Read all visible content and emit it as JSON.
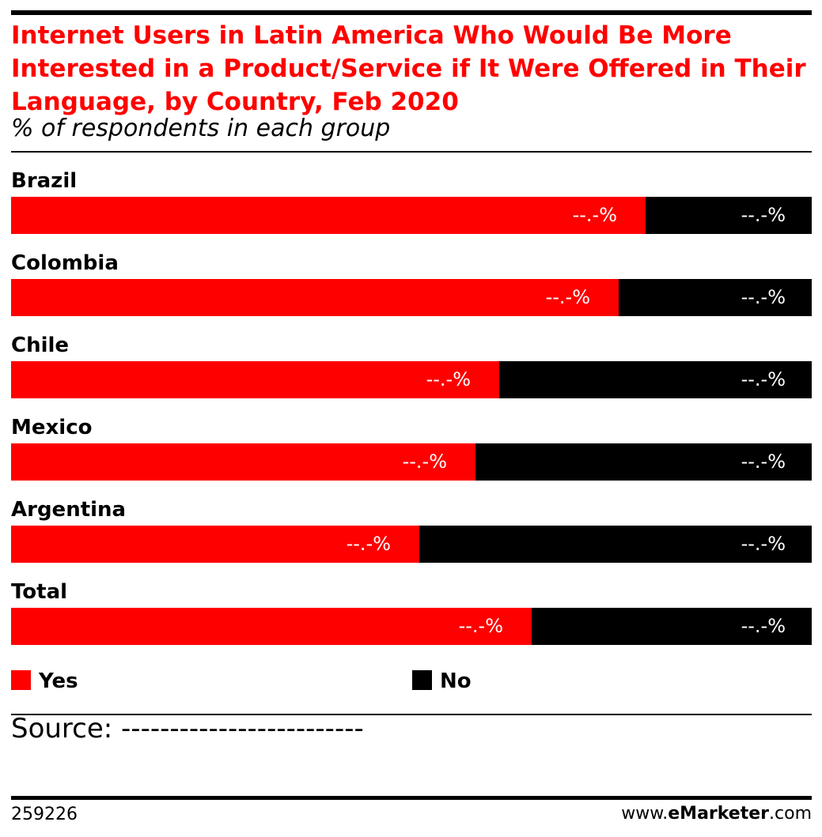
{
  "title": "Internet Users in Latin America Who Would Be More Interested in a Product/Service if It Were Offered in Their Language, by Country, Feb 2020",
  "subtitle": "% of respondents in each group",
  "colors": {
    "yes": "#ff0000",
    "no": "#000000",
    "title": "#ff0000"
  },
  "chart_data": {
    "type": "bar",
    "orientation": "horizontal",
    "stacked": true,
    "title": "Internet Users in Latin America Who Would Be More Interested in a Product/Service if It Were Offered in Their Language, by Country, Feb 2020",
    "subtitle": "% of respondents in each group",
    "categories": [
      "Brazil",
      "Colombia",
      "Chile",
      "Mexico",
      "Argentina",
      "Total"
    ],
    "series": [
      {
        "name": "Yes",
        "color": "#ff0000",
        "values": [
          79.2,
          75.9,
          61.0,
          58.0,
          51.0,
          65.0
        ],
        "labels": [
          "--.-%",
          "--.-%",
          "--.-%",
          "--.-%",
          "--.-%",
          "--.-%"
        ]
      },
      {
        "name": "No",
        "color": "#000000",
        "values": [
          20.8,
          24.1,
          39.0,
          42.0,
          49.0,
          35.0
        ],
        "labels": [
          "--.-%",
          "--.-%",
          "--.-%",
          "--.-%",
          "--.-%",
          "--.-%"
        ]
      }
    ],
    "xlim": [
      0,
      100
    ],
    "legend_position": "bottom",
    "grid": false
  },
  "source": "Source: -------------------------",
  "footer": {
    "id": "259226",
    "brand_prefix": "www.",
    "brand_bold": "eMarketer",
    "brand_suffix": ".com"
  }
}
